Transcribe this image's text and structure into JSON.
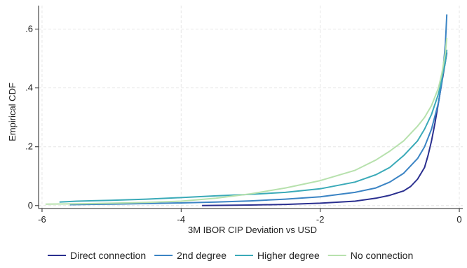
{
  "chart_data": {
    "type": "line",
    "title": "",
    "xlabel": "3M IBOR CIP Deviation vs USD",
    "ylabel": "Empirical CDF",
    "xlim": [
      -6.05,
      0.05
    ],
    "ylim": [
      -0.01,
      0.68
    ],
    "xticks": [
      -6,
      -4,
      -2,
      0
    ],
    "xtick_labels": [
      "-6",
      "-4",
      "-2",
      "0"
    ],
    "yticks": [
      0,
      0.2,
      0.4,
      0.6
    ],
    "ytick_labels": [
      "0",
      ".2",
      ".4",
      ".6"
    ],
    "grid": true,
    "legend_position": "bottom",
    "series": [
      {
        "name": "Direct connection",
        "color": "#2a2f8f",
        "points": [
          [
            -3.7,
            0.0
          ],
          [
            -3.0,
            0.002
          ],
          [
            -2.5,
            0.004
          ],
          [
            -2.0,
            0.008
          ],
          [
            -1.5,
            0.015
          ],
          [
            -1.2,
            0.025
          ],
          [
            -1.0,
            0.035
          ],
          [
            -0.8,
            0.05
          ],
          [
            -0.7,
            0.065
          ],
          [
            -0.6,
            0.09
          ],
          [
            -0.5,
            0.13
          ],
          [
            -0.45,
            0.17
          ],
          [
            -0.4,
            0.22
          ],
          [
            -0.35,
            0.28
          ],
          [
            -0.3,
            0.35
          ],
          [
            -0.25,
            0.42
          ],
          [
            -0.2,
            0.49
          ],
          [
            -0.18,
            0.52
          ]
        ]
      },
      {
        "name": "2nd degree",
        "color": "#3b84c4",
        "points": [
          [
            -5.6,
            0.003
          ],
          [
            -5.0,
            0.005
          ],
          [
            -4.5,
            0.007
          ],
          [
            -4.0,
            0.009
          ],
          [
            -3.5,
            0.012
          ],
          [
            -3.0,
            0.016
          ],
          [
            -2.5,
            0.022
          ],
          [
            -2.0,
            0.03
          ],
          [
            -1.5,
            0.045
          ],
          [
            -1.2,
            0.06
          ],
          [
            -1.0,
            0.08
          ],
          [
            -0.8,
            0.11
          ],
          [
            -0.6,
            0.16
          ],
          [
            -0.5,
            0.2
          ],
          [
            -0.4,
            0.26
          ],
          [
            -0.3,
            0.35
          ],
          [
            -0.25,
            0.42
          ],
          [
            -0.2,
            0.55
          ],
          [
            -0.18,
            0.65
          ]
        ]
      },
      {
        "name": "Higher degree",
        "color": "#3aaab8",
        "points": [
          [
            -5.75,
            0.012
          ],
          [
            -5.5,
            0.015
          ],
          [
            -5.0,
            0.018
          ],
          [
            -4.5,
            0.022
          ],
          [
            -4.0,
            0.027
          ],
          [
            -3.5,
            0.033
          ],
          [
            -3.0,
            0.038
          ],
          [
            -2.5,
            0.045
          ],
          [
            -2.0,
            0.057
          ],
          [
            -1.5,
            0.08
          ],
          [
            -1.2,
            0.105
          ],
          [
            -1.0,
            0.13
          ],
          [
            -0.8,
            0.17
          ],
          [
            -0.6,
            0.22
          ],
          [
            -0.5,
            0.26
          ],
          [
            -0.4,
            0.31
          ],
          [
            -0.3,
            0.38
          ],
          [
            -0.25,
            0.43
          ],
          [
            -0.2,
            0.49
          ],
          [
            -0.18,
            0.53
          ]
        ]
      },
      {
        "name": "No connection",
        "color": "#b7e1ad",
        "points": [
          [
            -5.95,
            0.005
          ],
          [
            -5.5,
            0.006
          ],
          [
            -5.0,
            0.008
          ],
          [
            -4.5,
            0.011
          ],
          [
            -4.0,
            0.015
          ],
          [
            -3.5,
            0.025
          ],
          [
            -3.0,
            0.04
          ],
          [
            -2.5,
            0.06
          ],
          [
            -2.0,
            0.085
          ],
          [
            -1.5,
            0.12
          ],
          [
            -1.2,
            0.155
          ],
          [
            -1.0,
            0.185
          ],
          [
            -0.8,
            0.22
          ],
          [
            -0.6,
            0.27
          ],
          [
            -0.5,
            0.3
          ],
          [
            -0.4,
            0.34
          ],
          [
            -0.3,
            0.4
          ],
          [
            -0.25,
            0.45
          ],
          [
            -0.2,
            0.52
          ],
          [
            -0.18,
            0.57
          ]
        ]
      }
    ]
  }
}
